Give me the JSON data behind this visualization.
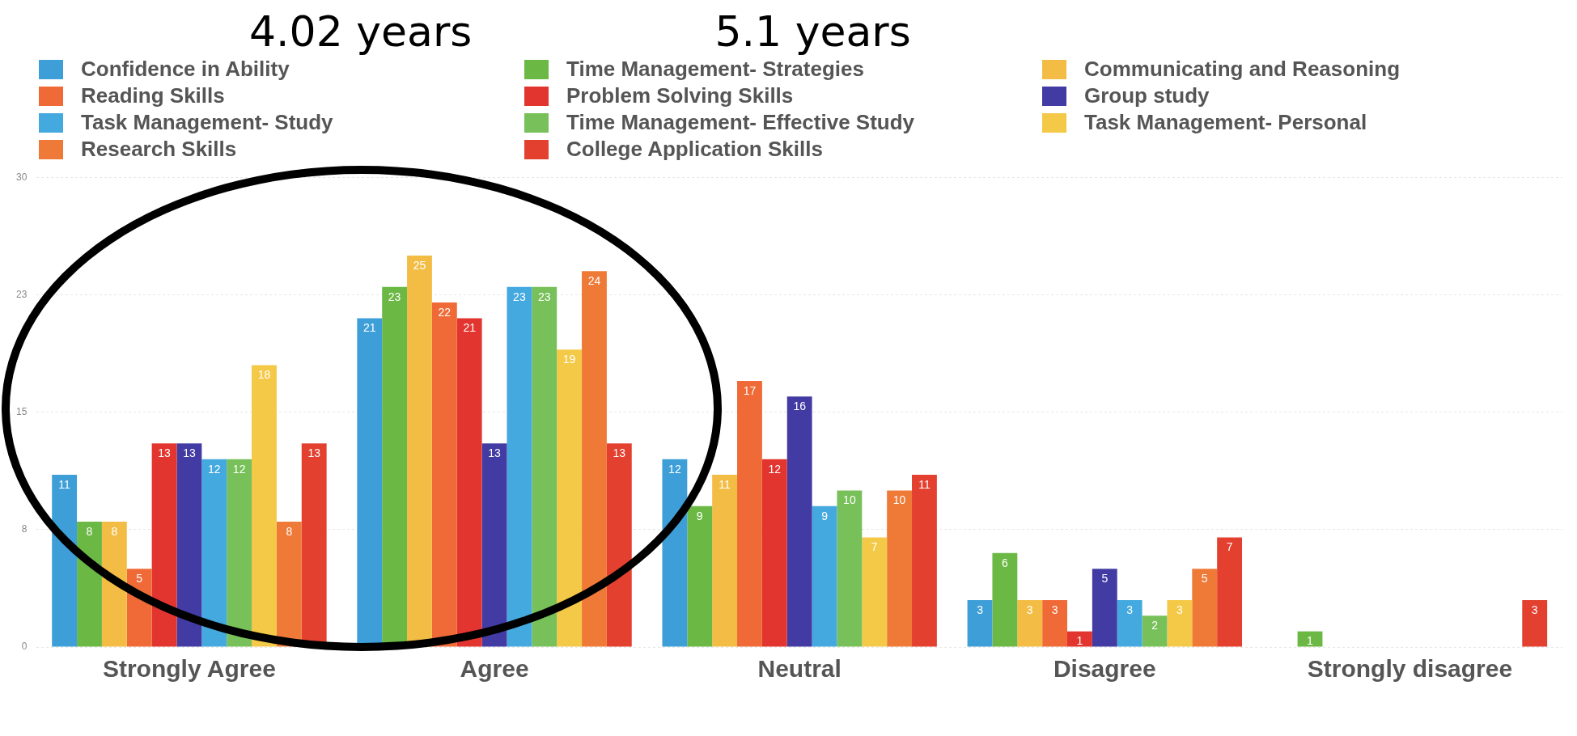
{
  "chart_data": {
    "type": "bar",
    "categories": [
      "Strongly Agree",
      "Agree",
      "Neutral",
      "Disagree",
      "Strongly disagree"
    ],
    "series": [
      {
        "name": "Confidence in Ability",
        "color": "#3e9fd8",
        "values": [
          11,
          21,
          12,
          3,
          null
        ]
      },
      {
        "name": "Time Management- Strategies",
        "color": "#6bb844",
        "values": [
          8,
          23,
          9,
          6,
          1
        ]
      },
      {
        "name": "Communicating and Reasoning",
        "color": "#f3bd45",
        "values": [
          8,
          25,
          11,
          3,
          null
        ]
      },
      {
        "name": "Reading Skills",
        "color": "#ef6a36",
        "values": [
          5,
          22,
          17,
          3,
          null
        ]
      },
      {
        "name": "Problem Solving Skills",
        "color": "#e3352f",
        "values": [
          13,
          21,
          12,
          1,
          null
        ]
      },
      {
        "name": "Group study",
        "color": "#433ba4",
        "values": [
          13,
          13,
          16,
          5,
          null
        ]
      },
      {
        "name": "Task Management- Study",
        "color": "#44a9de",
        "values": [
          12,
          23,
          9,
          3,
          null
        ]
      },
      {
        "name": "Time Management- Effective Study",
        "color": "#78c059",
        "values": [
          12,
          23,
          10,
          2,
          null
        ]
      },
      {
        "name": "Task Management- Personal",
        "color": "#f4c947",
        "values": [
          18,
          19,
          7,
          3,
          null
        ]
      },
      {
        "name": "Research Skills",
        "color": "#ef7a38",
        "values": [
          8,
          24,
          10,
          5,
          null
        ]
      },
      {
        "name": "College Application Skills",
        "color": "#e3402f",
        "values": [
          13,
          13,
          11,
          7,
          3
        ]
      }
    ],
    "ylim": [
      0,
      30
    ],
    "yticks": [
      0,
      {
        "value": 7.5,
        "label": "8"
      },
      15,
      {
        "value": 22.5,
        "label": "23"
      },
      30
    ],
    "grid": "y",
    "legend": "top",
    "data_labels": true,
    "annotations": [
      "4.02 years",
      "5.1 years"
    ]
  }
}
